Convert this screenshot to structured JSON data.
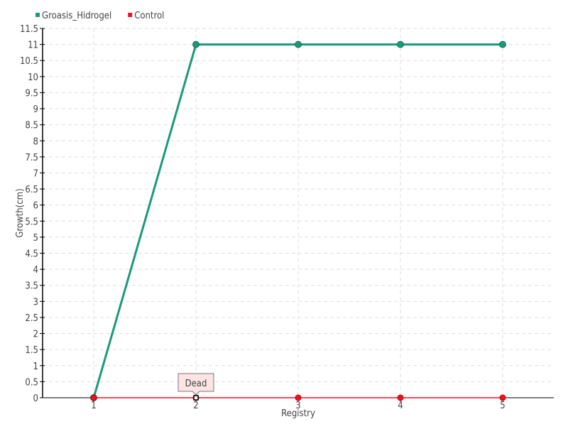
{
  "chart_data": {
    "type": "line",
    "title": "",
    "xlabel": "Registry",
    "ylabel": "Growth(cm)",
    "x": [
      1,
      2,
      3,
      4,
      5
    ],
    "xlim": [
      0.5,
      5.5
    ],
    "ylim": [
      0,
      11.5
    ],
    "ytick_step": 0.5,
    "grid": true,
    "legend": "top-left",
    "series": [
      {
        "name": "Groasis_Hidrogel",
        "color": "#1a9a7a",
        "values": [
          0,
          11,
          11,
          11,
          11
        ]
      },
      {
        "name": "Control",
        "color": "#ee1122",
        "values": [
          0,
          0,
          0,
          0,
          0
        ]
      }
    ],
    "annotations": [
      {
        "x": 2,
        "y": 0,
        "series": "Control",
        "text": "Dead"
      }
    ]
  }
}
